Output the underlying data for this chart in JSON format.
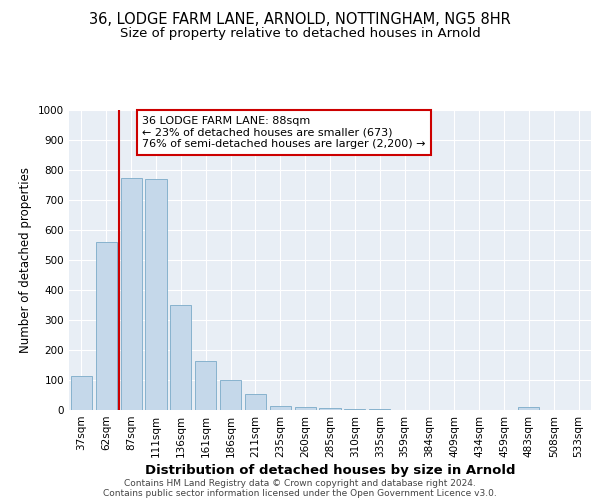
{
  "title1": "36, LODGE FARM LANE, ARNOLD, NOTTINGHAM, NG5 8HR",
  "title2": "Size of property relative to detached houses in Arnold",
  "xlabel": "Distribution of detached houses by size in Arnold",
  "ylabel": "Number of detached properties",
  "categories": [
    "37sqm",
    "62sqm",
    "87sqm",
    "111sqm",
    "136sqm",
    "161sqm",
    "186sqm",
    "211sqm",
    "235sqm",
    "260sqm",
    "285sqm",
    "310sqm",
    "335sqm",
    "359sqm",
    "384sqm",
    "409sqm",
    "434sqm",
    "459sqm",
    "483sqm",
    "508sqm",
    "533sqm"
  ],
  "values": [
    115,
    560,
    775,
    770,
    350,
    165,
    100,
    55,
    15,
    10,
    7,
    5,
    3,
    0,
    0,
    0,
    0,
    0,
    10,
    0,
    0
  ],
  "bar_color": "#c5d8ea",
  "bar_edge_color": "#7aaac8",
  "marker_index": 2,
  "marker_color": "#cc0000",
  "annotation_text": "36 LODGE FARM LANE: 88sqm\n← 23% of detached houses are smaller (673)\n76% of semi-detached houses are larger (2,200) →",
  "annotation_box_color": "#ffffff",
  "annotation_box_edge_color": "#cc0000",
  "footer1": "Contains HM Land Registry data © Crown copyright and database right 2024.",
  "footer2": "Contains public sector information licensed under the Open Government Licence v3.0.",
  "plot_bg_color": "#e8eef5",
  "ylim": [
    0,
    1000
  ],
  "yticks": [
    0,
    100,
    200,
    300,
    400,
    500,
    600,
    700,
    800,
    900,
    1000
  ],
  "title1_fontsize": 10.5,
  "title2_fontsize": 9.5,
  "xlabel_fontsize": 9.5,
  "ylabel_fontsize": 8.5,
  "tick_fontsize": 7.5,
  "annotation_fontsize": 8,
  "footer_fontsize": 6.5
}
